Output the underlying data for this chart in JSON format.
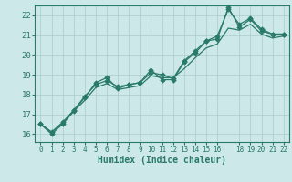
{
  "xlabel": "Humidex (Indice chaleur)",
  "bg_color": "#cce8e8",
  "grid_color": "#aacccc",
  "line_color": "#2a7a6a",
  "xlim": [
    -0.5,
    22.5
  ],
  "ylim": [
    15.6,
    22.5
  ],
  "xtick_positions": [
    0,
    1,
    2,
    3,
    4,
    5,
    6,
    7,
    8,
    9,
    10,
    11,
    12,
    13,
    14,
    15,
    16,
    18,
    19,
    20,
    21,
    22
  ],
  "xtick_labels": [
    "0",
    "1",
    "2",
    "3",
    "4",
    "5",
    "6",
    "7",
    "8",
    "9",
    "10",
    "11",
    "12",
    "13",
    "14",
    "15",
    "16",
    "18",
    "19",
    "20",
    "21",
    "22"
  ],
  "yticks": [
    16,
    17,
    18,
    19,
    20,
    21,
    22
  ],
  "series1_x": [
    0,
    1,
    2,
    3,
    4,
    5,
    6,
    7,
    8,
    9,
    10,
    11,
    12,
    13,
    14,
    15,
    16,
    17,
    18,
    19,
    20,
    21,
    22
  ],
  "series1_y": [
    16.5,
    16.0,
    16.5,
    17.15,
    17.85,
    18.6,
    18.85,
    18.3,
    18.5,
    18.6,
    19.25,
    18.75,
    18.75,
    19.65,
    20.1,
    20.7,
    20.95,
    22.3,
    21.55,
    21.85,
    21.3,
    21.05,
    21.05
  ],
  "series2_x": [
    0,
    1,
    2,
    3,
    4,
    5,
    6,
    7,
    8,
    9,
    10,
    11,
    12,
    13,
    14,
    15,
    16,
    17,
    18,
    19,
    20,
    21,
    22
  ],
  "series2_y": [
    16.5,
    16.1,
    16.6,
    17.2,
    17.9,
    18.5,
    18.7,
    18.4,
    18.5,
    18.6,
    19.1,
    19.0,
    18.8,
    19.7,
    20.2,
    20.7,
    20.8,
    22.4,
    21.4,
    21.8,
    21.2,
    21.05,
    21.05
  ],
  "series3_x": [
    0,
    1,
    2,
    3,
    4,
    5,
    6,
    7,
    8,
    9,
    10,
    11,
    12,
    13,
    14,
    15,
    16,
    17,
    18,
    19,
    20,
    21,
    22
  ],
  "series3_y": [
    16.5,
    16.1,
    16.55,
    17.15,
    17.7,
    18.35,
    18.55,
    18.25,
    18.35,
    18.45,
    18.95,
    18.85,
    18.85,
    19.3,
    19.85,
    20.35,
    20.55,
    21.35,
    21.25,
    21.55,
    21.05,
    20.85,
    20.95
  ]
}
